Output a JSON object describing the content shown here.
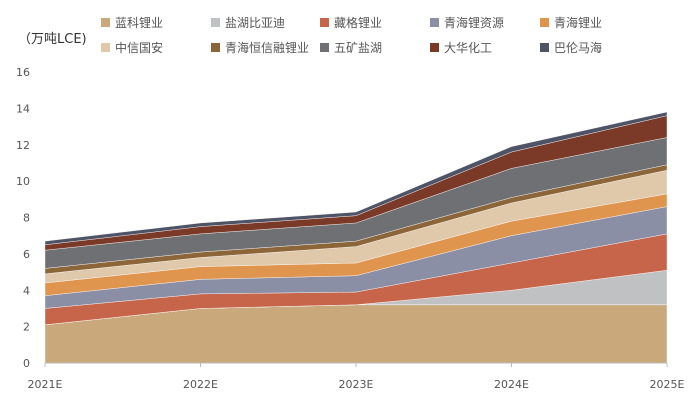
{
  "chart_data": {
    "type": "area",
    "stacked": true,
    "ylabel": "（万吨LCE)",
    "ylim": [
      0,
      16
    ],
    "yticks": [
      "0",
      "2",
      "4",
      "6",
      "8",
      "10",
      "12",
      "14",
      "16"
    ],
    "categories": [
      "2021E",
      "2022E",
      "2023E",
      "2024E",
      "2025E"
    ],
    "grid": false,
    "legend_position": "top",
    "series": [
      {
        "name": "蓝科锂业",
        "color": "#c9a97c",
        "values": [
          2.1,
          3.0,
          3.2,
          3.2,
          3.2
        ]
      },
      {
        "name": "盐湖比亚迪",
        "color": "#c0c1c3",
        "values": [
          0,
          0,
          0,
          0.8,
          1.9
        ]
      },
      {
        "name": "藏格锂业",
        "color": "#c6654a",
        "values": [
          0.9,
          0.8,
          0.7,
          1.5,
          2.0
        ]
      },
      {
        "name": "青海锂资源",
        "color": "#8a8fa6",
        "values": [
          0.7,
          0.8,
          0.9,
          1.5,
          1.5
        ]
      },
      {
        "name": "青海锂业",
        "color": "#e0954f",
        "values": [
          0.7,
          0.7,
          0.7,
          0.8,
          0.7
        ]
      },
      {
        "name": "中信国安",
        "color": "#e0c8aa",
        "values": [
          0.5,
          0.5,
          0.9,
          1.0,
          1.3
        ]
      },
      {
        "name": "青海恒信融锂业",
        "color": "#8c6538",
        "values": [
          0.3,
          0.3,
          0.3,
          0.3,
          0.3
        ]
      },
      {
        "name": "五矿盐湖",
        "color": "#6e7073",
        "values": [
          1.0,
          1.0,
          1.0,
          1.6,
          1.5
        ]
      },
      {
        "name": "大华化工",
        "color": "#7b3928",
        "values": [
          0.3,
          0.4,
          0.4,
          0.9,
          1.2
        ]
      },
      {
        "name": "巴伦马海",
        "color": "#4e5366",
        "values": [
          0.2,
          0.2,
          0.2,
          0.3,
          0.2
        ]
      }
    ]
  }
}
